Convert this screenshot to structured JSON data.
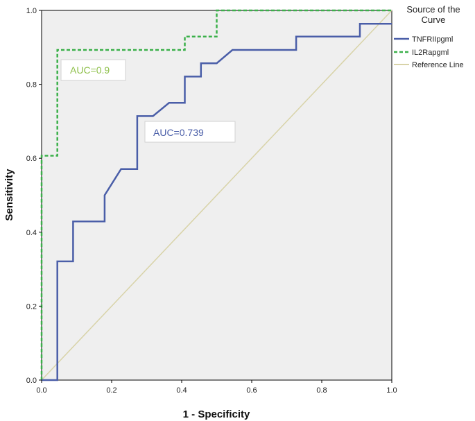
{
  "chart_data": {
    "type": "line",
    "xlabel": "1 - Specificity",
    "ylabel": "Sensitivity",
    "xlim": [
      0,
      1
    ],
    "ylim": [
      0,
      1
    ],
    "x_ticks": [
      "0.0",
      "0.2",
      "0.4",
      "0.6",
      "0.8",
      "1.0"
    ],
    "y_ticks": [
      "0.0",
      "0.2",
      "0.4",
      "0.6",
      "0.8",
      "1.0"
    ],
    "grid": false,
    "legend": {
      "title_lines": [
        "Source of the",
        "Curve"
      ],
      "position": "right"
    },
    "series": [
      {
        "name": "TNFRIIpgml",
        "color": "#4a5ea8",
        "style": "solid",
        "x": [
          0.0,
          0.045,
          0.045,
          0.09,
          0.09,
          0.18,
          0.18,
          0.227,
          0.273,
          0.273,
          0.318,
          0.364,
          0.409,
          0.409,
          0.455,
          0.455,
          0.5,
          0.545,
          0.727,
          0.727,
          0.909,
          0.909,
          1.0
        ],
        "y": [
          0.0,
          0.0,
          0.321,
          0.321,
          0.429,
          0.429,
          0.5,
          0.571,
          0.571,
          0.714,
          0.714,
          0.75,
          0.75,
          0.821,
          0.821,
          0.857,
          0.857,
          0.893,
          0.893,
          0.929,
          0.929,
          0.964,
          0.964
        ]
      },
      {
        "name": "IL2Rapgml",
        "color": "#3bb04a",
        "style": "dashed",
        "x": [
          0.0,
          0.0,
          0.045,
          0.045,
          0.409,
          0.409,
          0.5,
          0.5,
          1.0
        ],
        "y": [
          0.0,
          0.607,
          0.607,
          0.893,
          0.893,
          0.929,
          0.929,
          1.0,
          1.0
        ]
      },
      {
        "name": "Reference Line",
        "color": "#d8d3a8",
        "style": "solid",
        "x": [
          0,
          1
        ],
        "y": [
          0,
          1
        ]
      }
    ],
    "annotations": [
      {
        "text": "AUC=0.9",
        "color": "#8ec04a",
        "series": "IL2Rapgml"
      },
      {
        "text": "AUC=0.739",
        "color": "#4a5ea8",
        "series": "TNFRIIpgml"
      }
    ]
  }
}
